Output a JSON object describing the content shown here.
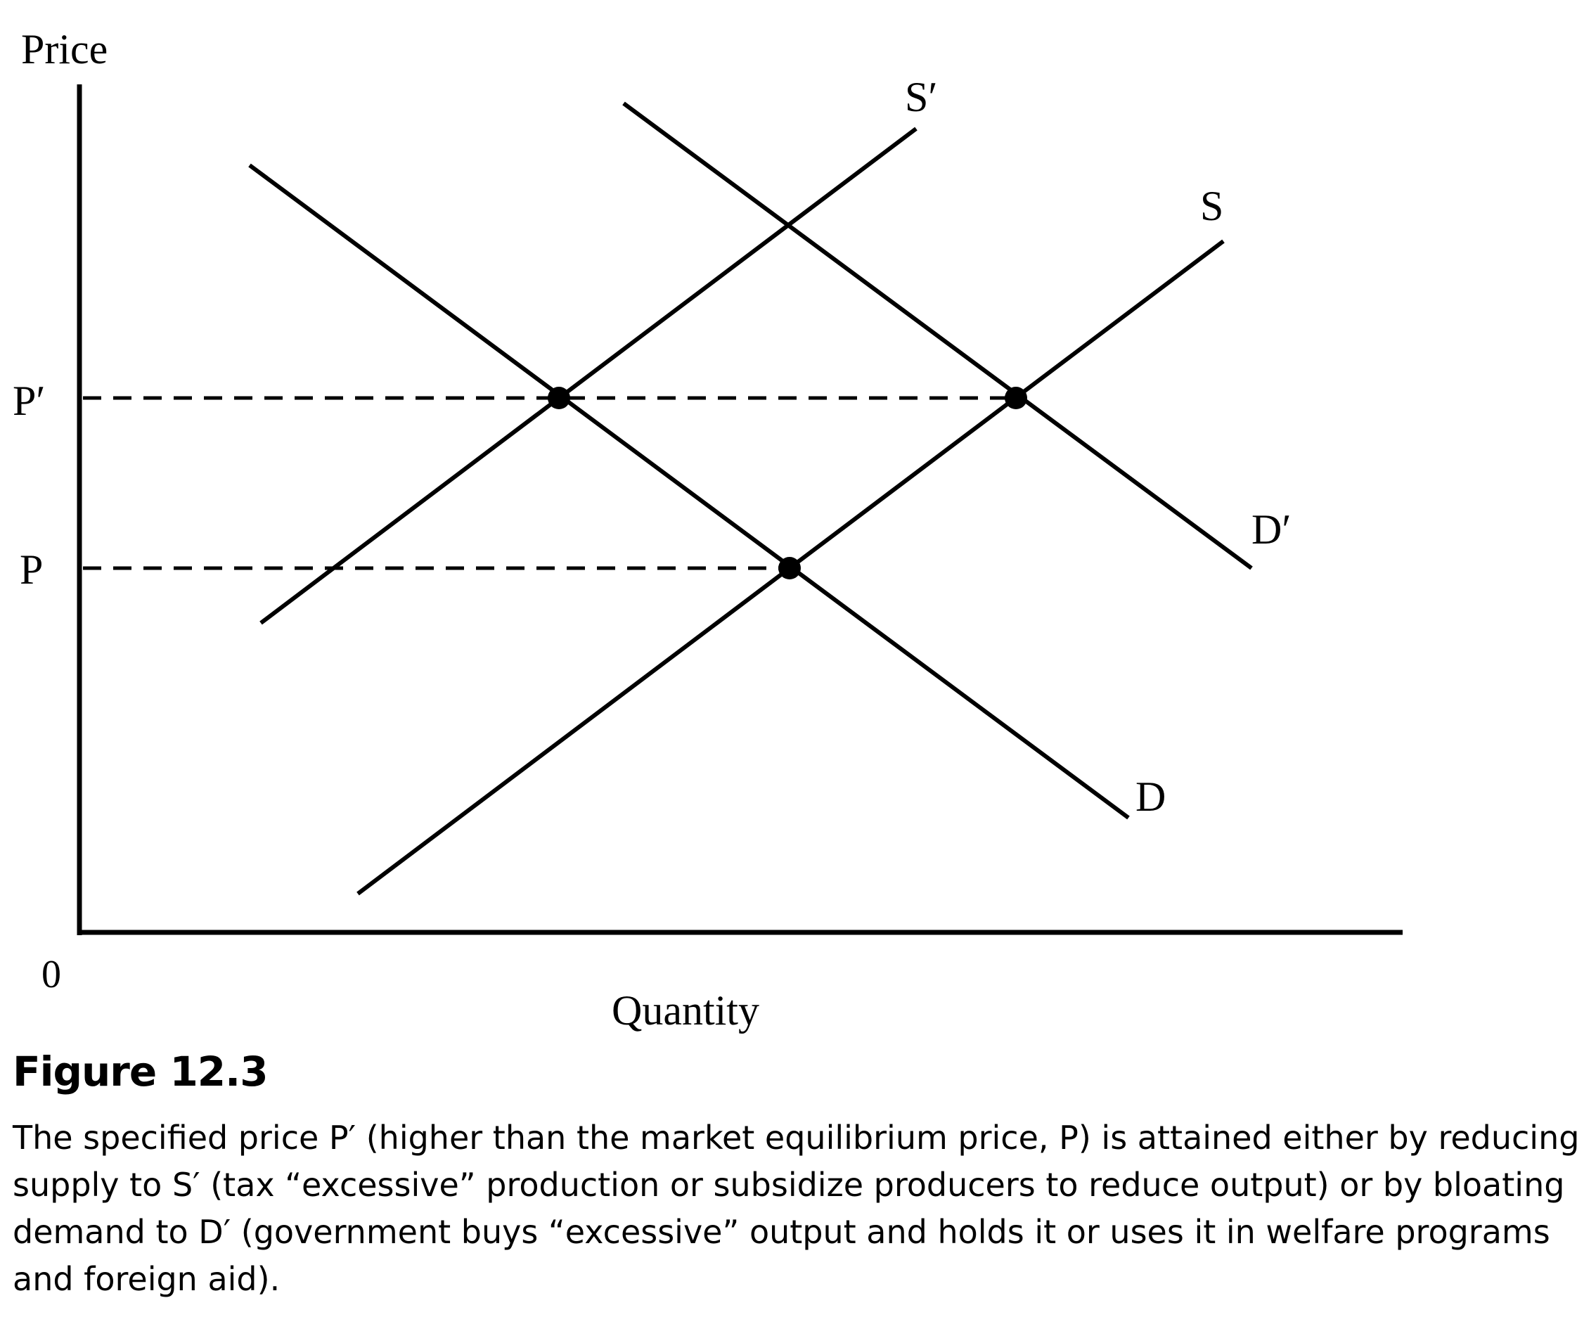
{
  "diagram": {
    "y_axis_label": "Price",
    "x_axis_label": "Quantity",
    "origin_label": "0",
    "price_labels": {
      "p_prime": "P′",
      "p": "P"
    },
    "curve_labels": {
      "s_prime": "S′",
      "s": "S",
      "d_prime": "D′",
      "d": "D"
    }
  },
  "caption": {
    "title": "Figure 12.3",
    "lines": [
      "The specified price P′ (higher than the market equilibrium price, P) is attained either by reducing",
      "supply to S′ (tax “excessive” production or subsidize producers to reduce output) or by bloating",
      "demand to D′ (government buys “excessive” output and holds it or uses it in welfare programs",
      "and foreign aid)."
    ]
  }
}
